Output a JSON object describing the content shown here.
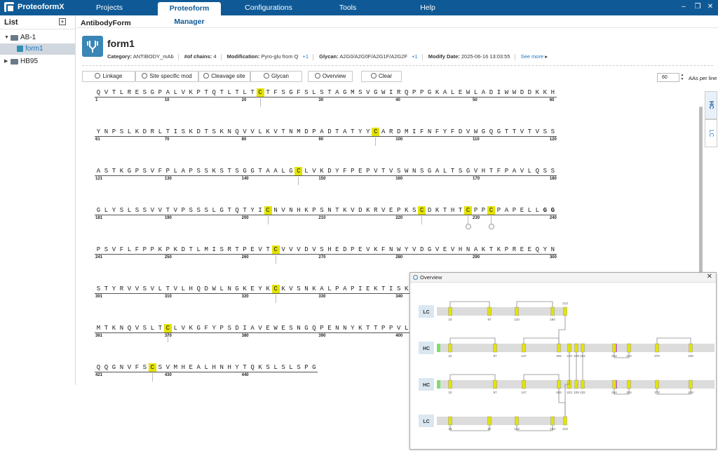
{
  "app": {
    "name": "ProteoformX"
  },
  "menu": {
    "items": [
      "Projects",
      "Proteoform Manager",
      "Configurations",
      "Tools",
      "Help"
    ],
    "active": "Proteoform Manager"
  },
  "window": {
    "min": "–",
    "max": "❐",
    "close": "✕"
  },
  "sidebar": {
    "title": "List",
    "add": "+",
    "items": [
      {
        "label": "AB-1",
        "caret": "▼"
      },
      {
        "label": "form1"
      },
      {
        "label": "HB95",
        "caret": "▶"
      }
    ]
  },
  "breadcrumb": "AntibodyForm",
  "form": {
    "name": "form1",
    "category_label": "Category:",
    "category": "ANTIBODY_mAb",
    "chains_label": "#of chains:",
    "chains": "4",
    "modification_label": "Modification:",
    "modification": "Pyro-glu from Q",
    "modification_more": "+1",
    "glycan_label": "Glycan:",
    "glycan": "A2G0/A2G0F/A2G1F/A2G2F",
    "glycan_more": "+1",
    "date_label": "Modify Date:",
    "date": "2025-06-16 13:03:55",
    "see_more": "See more",
    "see_more_arrow": "▸"
  },
  "toolbar": {
    "linkage": "Linkage",
    "site_mod": "Site specific mod",
    "cleavage": "Cleavage site",
    "glycan": "Glycan",
    "overview": "Overview",
    "clear": "Clear",
    "aas_value": "60",
    "aas_label": "AAs per line"
  },
  "chain_tabs": [
    "HC",
    "LC"
  ],
  "sequence": {
    "rows": [
      {
        "start": 1,
        "seq": "QVTLRESGPALVKPTQTLTLTCTFSGFSLSTAGMSVGWIRQPPGKALEWLADIWWDDKKH",
        "nums": [
          1,
          10,
          20,
          30,
          40,
          50,
          60
        ],
        "cys": [
          22
        ],
        "circ": []
      },
      {
        "start": 61,
        "seq": "YNPSLKDRLTISKDTSKNQVVLKVTNMDPADTATYYCARDMIFNFYFDVWGQGTTVTVSS",
        "nums": [
          61,
          70,
          80,
          90,
          100,
          110,
          120
        ],
        "cys": [
          97
        ],
        "circ": []
      },
      {
        "start": 121,
        "seq": "ASTKGPSVFPLAPSSKSTSGGTAALGCLVKDYFPEPVTVSWNSGALTSGVHTFPAVLQSS",
        "nums": [
          121,
          130,
          140,
          150,
          160,
          170,
          180
        ],
        "cys": [
          147
        ],
        "circ": []
      },
      {
        "start": 181,
        "seq": "GLYSLSSVVTVPSSSLGTQTYICNVNHKPSNTKVDKRVEPKSCDKTHTCPPCPAPELLGG",
        "nums": [
          181,
          190,
          200,
          210,
          220,
          230,
          240
        ],
        "cys": [
          203,
          223,
          229,
          232
        ],
        "circ": [
          229,
          232
        ]
      },
      {
        "start": 241,
        "seq": "PSVFLFPPKPKDTLMISRTPEVTCVVVDVSHEDPEVKFNWYVDGVEVHNAKTKPREEQYN",
        "nums": [
          241,
          250,
          260,
          270,
          280,
          290,
          300
        ],
        "cys": [
          264
        ],
        "circ": []
      },
      {
        "start": 301,
        "seq": "STYRVVSVLTVLHQDWLNGKEYKCKVSNKALPAPIEKTISK",
        "nums": [
          301,
          310,
          320,
          330,
          340
        ],
        "cys": [
          324
        ],
        "circ": []
      },
      {
        "start": 361,
        "seq": "MTKNQVSLTCLVKGFYPSDIAVEWESNGQPENNYKTTPPVL",
        "nums": [
          361,
          370,
          380,
          390,
          400
        ],
        "cys": [
          370
        ],
        "circ": []
      },
      {
        "start": 421,
        "seq": "QQGNVFSCSVMHEALHNHYTQKSLSLSPG",
        "nums": [
          421,
          430,
          440
        ],
        "cys": [
          428
        ],
        "circ": []
      }
    ]
  },
  "overview": {
    "title": "Overview",
    "close": "✕",
    "chains": [
      {
        "label": "LC",
        "sites": [
          "23",
          "87",
          "133",
          "193",
          "213"
        ]
      },
      {
        "label": "HC",
        "sites": [
          "22",
          "97",
          "147",
          "203",
          "223",
          "229",
          "232",
          "264",
          "324",
          "370",
          "428"
        ]
      },
      {
        "label": "HC",
        "sites": [
          "22",
          "97",
          "147",
          "203",
          "223",
          "229",
          "232",
          "264",
          "324",
          "370",
          "428"
        ]
      },
      {
        "label": "LC",
        "sites": [
          "23",
          "87",
          "133",
          "193",
          "213"
        ]
      }
    ]
  },
  "colors": {
    "primary": "#0f5a96",
    "cysteine": "#e3e300",
    "glycan": "#c85bd3",
    "link": "#1b74c5"
  }
}
